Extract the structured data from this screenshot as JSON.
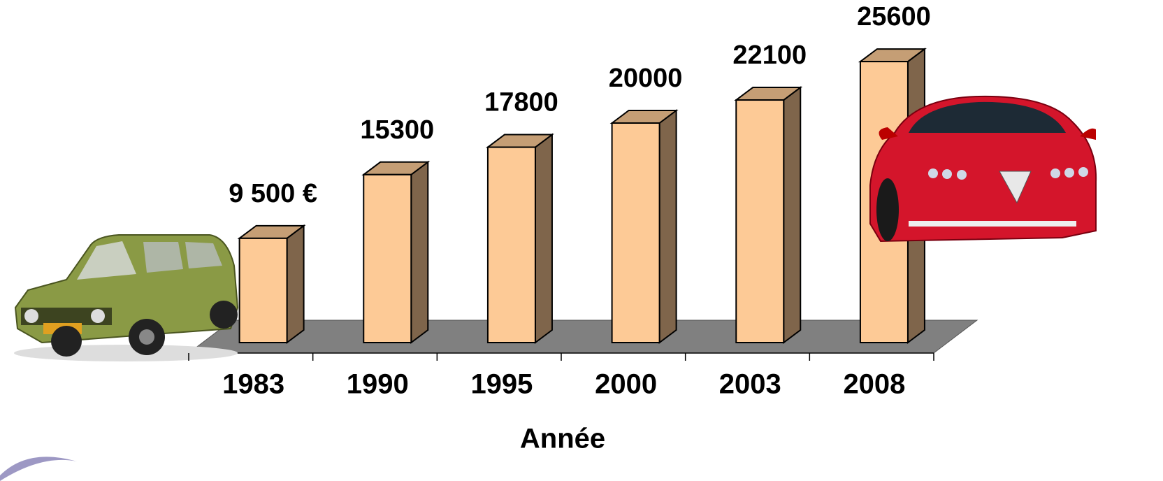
{
  "chart_data": {
    "type": "bar3d",
    "x_label": "Année",
    "categories": [
      "1983",
      "1990",
      "1995",
      "2000",
      "2003",
      "2008"
    ],
    "values": [
      9500,
      15300,
      17800,
      20000,
      22100,
      25600
    ],
    "value_labels": [
      "9 500 €",
      "15300",
      "17800",
      "20000",
      "22100",
      "25600"
    ],
    "color": "#fdca96"
  }
}
